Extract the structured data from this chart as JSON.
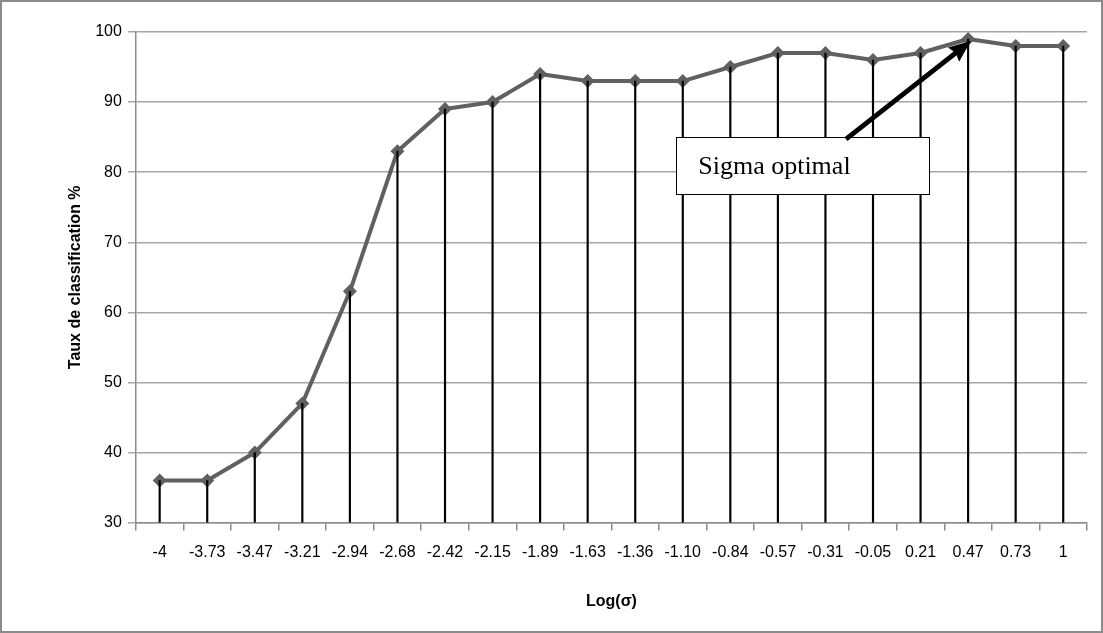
{
  "chart_data": {
    "type": "line",
    "xlabel": "Log(σ)",
    "ylabel": "Taux de classification %",
    "categories": [
      "-4",
      "-3.73",
      "-3.47",
      "-3.21",
      "-2.94",
      "-2.68",
      "-2.42",
      "-2.15",
      "-1.89",
      "-1.63",
      "-1.36",
      "-1.10",
      "-0.84",
      "-0.57",
      "-0.31",
      "-0.05",
      "0.21",
      "0.47",
      "0.73",
      "1"
    ],
    "series": [
      {
        "type": "bar",
        "color": "#000000",
        "values": [
          36,
          36,
          40,
          47,
          63,
          83,
          89,
          90,
          94,
          93,
          93,
          93,
          95,
          97,
          97,
          96,
          97,
          99,
          98,
          98
        ]
      },
      {
        "color": "#606060",
        "values": [
          36,
          36,
          40,
          47,
          63,
          83,
          89,
          90,
          94,
          93,
          93,
          93,
          95,
          97,
          97,
          96,
          97,
          99,
          98,
          98
        ]
      }
    ],
    "ylim": [
      30,
      100
    ],
    "yticks": [
      30,
      40,
      50,
      60,
      70,
      80,
      90,
      100
    ],
    "grid": "y",
    "legend": false,
    "marker": "diamond",
    "line_style": "solid",
    "annotations": [
      "Sigma optimal"
    ]
  }
}
